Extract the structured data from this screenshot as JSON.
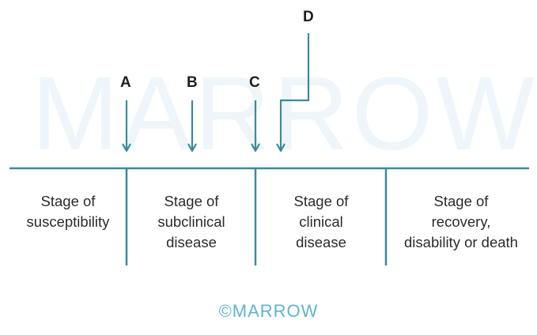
{
  "watermark": "MARROW",
  "markers": {
    "a": "A",
    "b": "B",
    "c": "C",
    "d": "D"
  },
  "stages": [
    {
      "label": "Stage of\nsusceptibility"
    },
    {
      "label": "Stage of\nsubclinical\ndisease"
    },
    {
      "label": "Stage of\nclinical\ndisease"
    },
    {
      "label": "Stage of\nrecovery,\ndisability or death"
    }
  ],
  "footer": {
    "logo_text": "©MARROW"
  },
  "colors": {
    "line": "#3b8a9c",
    "watermark": "#eef6fb",
    "logo": "#5fb3d0"
  }
}
